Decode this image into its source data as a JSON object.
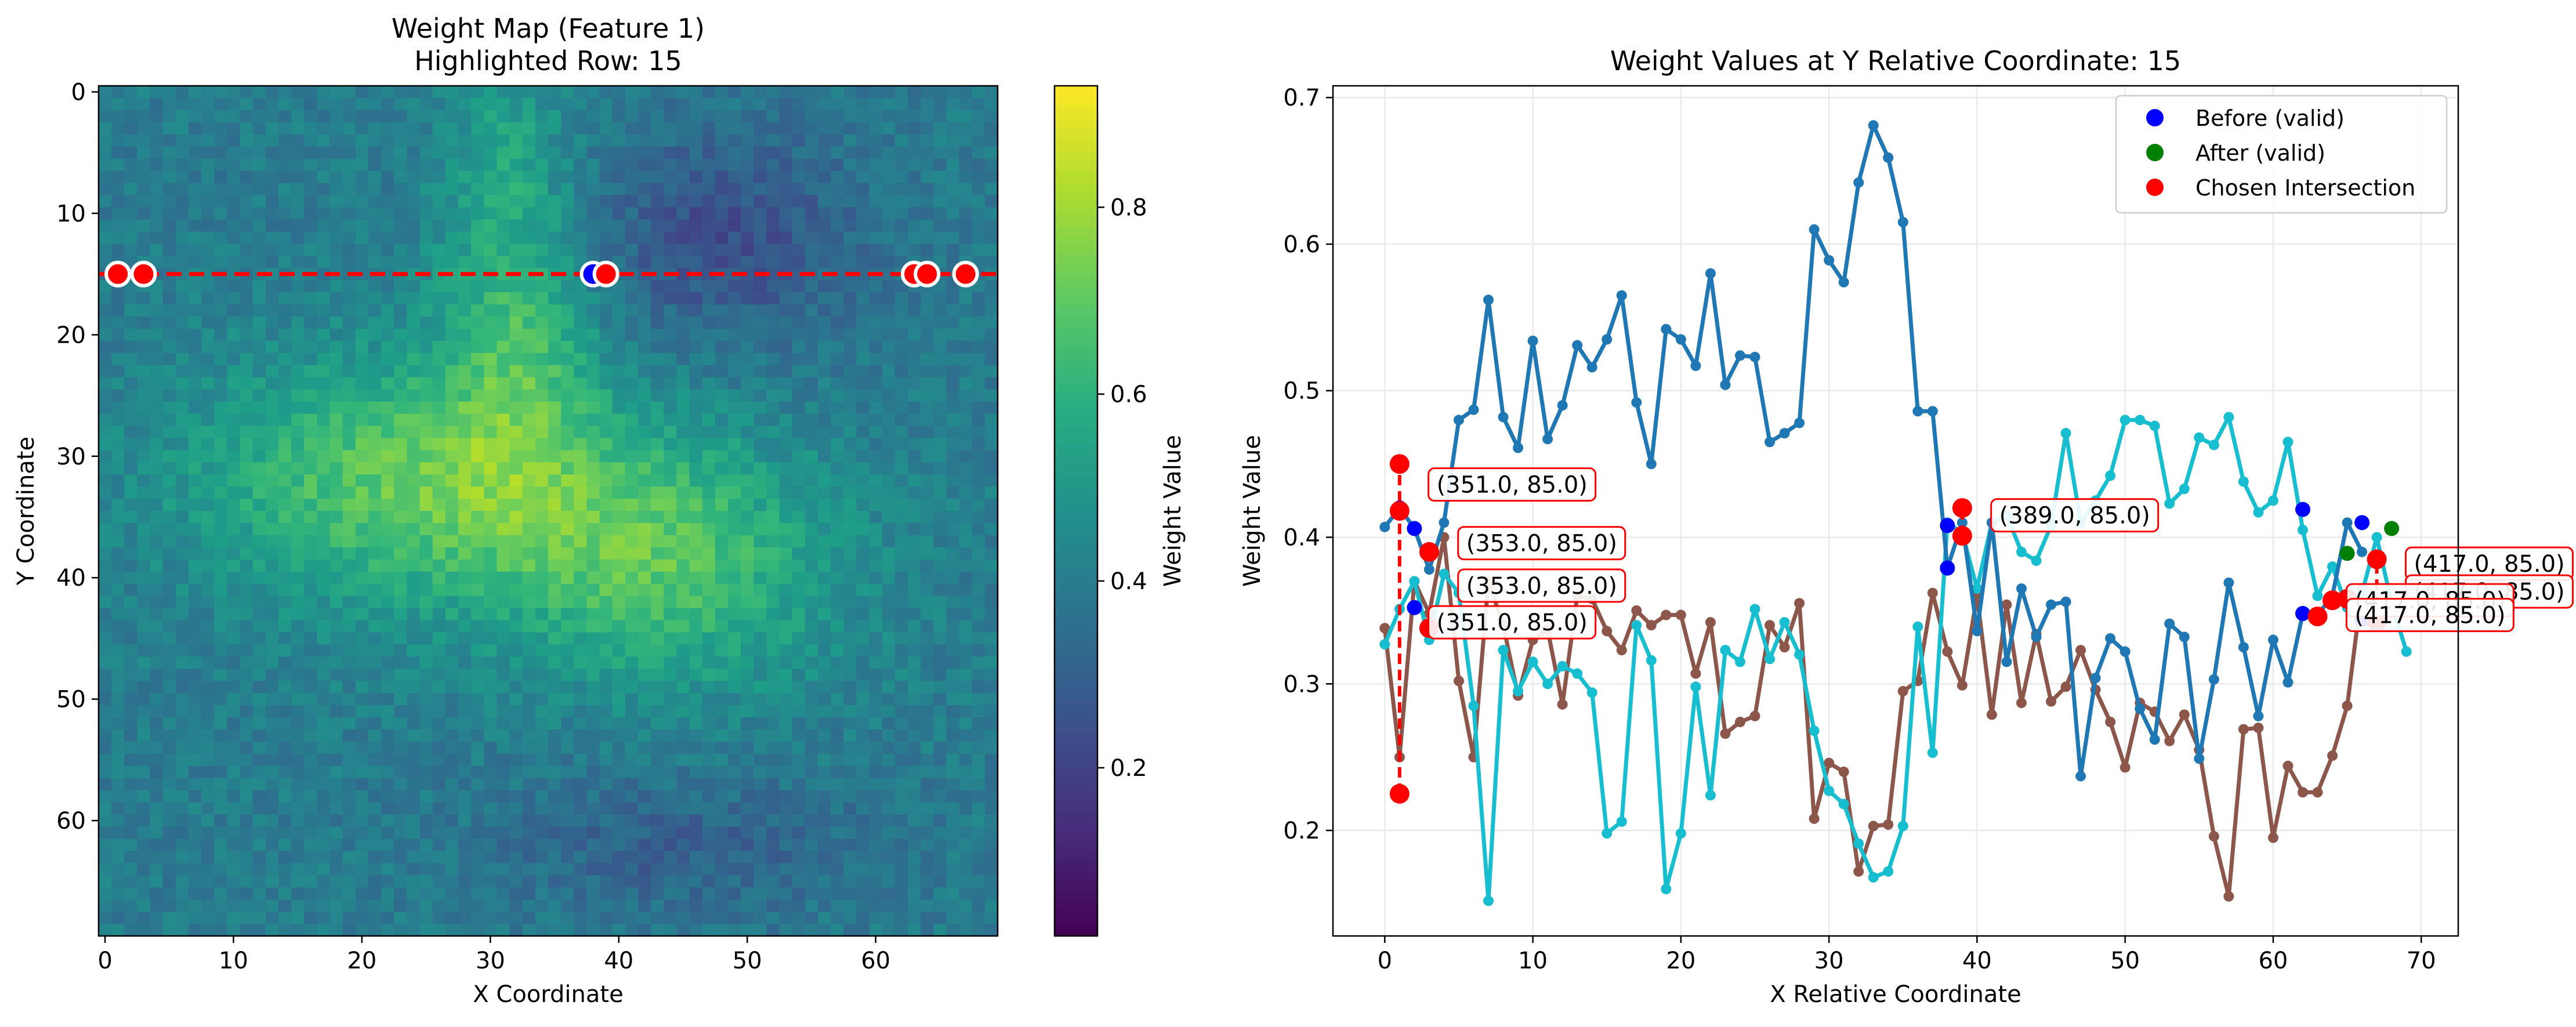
{
  "colors": {
    "series_blue": "#1f77b4",
    "series_cyan": "#17becf",
    "series_brown": "#8c564b",
    "before": "#0000ff",
    "after": "#008000",
    "chosen": "#ff0000",
    "grid": "#e6e6e6"
  },
  "chart_data": [
    {
      "type": "heatmap",
      "title": "Weight Map (Feature 1)",
      "subtitle": "Highlighted Row: 15",
      "xlabel": "X Coordinate",
      "ylabel": "Y Coordinate",
      "grid_size": [
        70,
        70
      ],
      "xlim": [
        -0.5,
        69.5
      ],
      "ylim": [
        69.5,
        -0.5
      ],
      "xticks": [
        0,
        10,
        20,
        30,
        40,
        50,
        60
      ],
      "yticks": [
        0,
        10,
        20,
        30,
        40,
        50,
        60
      ],
      "colorbar": {
        "label": "Weight Value",
        "range": [
          0.02,
          0.93
        ],
        "ticks": [
          0.2,
          0.4,
          0.6,
          0.8
        ],
        "colormap": "viridis"
      },
      "highlight_row": 15,
      "row_markers": [
        {
          "x": 1,
          "kind": "before"
        },
        {
          "x": 1,
          "kind": "chosen"
        },
        {
          "x": 3,
          "kind": "chosen"
        },
        {
          "x": 38,
          "kind": "before"
        },
        {
          "x": 39,
          "kind": "chosen"
        },
        {
          "x": 63,
          "kind": "before"
        },
        {
          "x": 63,
          "kind": "chosen"
        },
        {
          "x": 64,
          "kind": "chosen"
        },
        {
          "x": 67,
          "kind": "chosen"
        }
      ]
    },
    {
      "type": "line",
      "title": "Weight Values at Y Relative Coordinate: 15",
      "xlabel": "X Relative Coordinate",
      "ylabel": "Weight Value",
      "xlim": [
        -3.5,
        72.5
      ],
      "ylim": [
        0.128,
        0.708
      ],
      "xticks": [
        0,
        10,
        20,
        30,
        40,
        50,
        60,
        70
      ],
      "yticks": [
        0.2,
        0.3,
        0.4,
        0.5,
        0.6,
        0.7
      ],
      "ytick_labels": [
        "0.2",
        "0.3",
        "0.4",
        "0.5",
        "0.6",
        "0.7"
      ],
      "grid": true,
      "legend": {
        "position": "top-right",
        "entries": [
          "Before (valid)",
          "After (valid)",
          "Chosen Intersection"
        ]
      },
      "series": [
        {
          "name": "blue",
          "x_start": 0,
          "values": [
            0.407,
            0.42,
            0.406,
            0.378,
            0.41,
            0.48,
            0.487,
            0.562,
            0.482,
            0.461,
            0.534,
            0.467,
            0.49,
            0.531,
            0.516,
            0.535,
            0.565,
            0.492,
            0.45,
            0.542,
            0.535,
            0.517,
            0.58,
            0.504,
            0.524,
            0.523,
            0.465,
            0.471,
            0.478,
            0.61,
            0.589,
            0.574,
            0.642,
            0.681,
            0.659,
            0.615,
            0.486,
            0.486,
            0.379,
            0.41,
            0.336,
            0.41,
            0.315,
            0.365,
            0.332,
            0.354,
            0.356,
            0.237,
            0.304,
            0.331,
            0.322,
            0.283,
            0.262,
            0.341,
            0.332,
            0.249,
            0.303,
            0.369,
            0.325,
            0.278,
            0.33,
            0.301,
            0.348,
            0.347,
            0.36,
            0.41,
            0.39
          ]
        },
        {
          "name": "cyan",
          "x_start": 0,
          "values": [
            0.327,
            0.351,
            0.37,
            0.33,
            0.375,
            0.362,
            0.285,
            0.152,
            0.323,
            0.295,
            0.315,
            0.3,
            0.312,
            0.307,
            0.294,
            0.198,
            0.206,
            0.34,
            0.316,
            0.16,
            0.198,
            0.298,
            0.224,
            0.323,
            0.315,
            0.351,
            0.317,
            0.342,
            0.32,
            0.268,
            0.227,
            0.218,
            0.191,
            0.168,
            0.172,
            0.203,
            0.339,
            0.253,
            0.41,
            0.403,
            0.365,
            0.41,
            0.415,
            0.39,
            0.384,
            0.408,
            0.471,
            0.41,
            0.425,
            0.442,
            0.48,
            0.48,
            0.476,
            0.423,
            0.433,
            0.468,
            0.463,
            0.482,
            0.438,
            0.417,
            0.425,
            0.465,
            0.405,
            0.36,
            0.38,
            0.352,
            0.362,
            0.4,
            0.355,
            0.322
          ]
        },
        {
          "name": "brown",
          "x_start": 0,
          "values": [
            0.338,
            0.25,
            0.37,
            0.348,
            0.4,
            0.302,
            0.25,
            0.37,
            0.34,
            0.292,
            0.33,
            0.337,
            0.286,
            0.36,
            0.358,
            0.336,
            0.323,
            0.35,
            0.34,
            0.347,
            0.347,
            0.307,
            0.342,
            0.266,
            0.274,
            0.278,
            0.34,
            0.325,
            0.355,
            0.208,
            0.246,
            0.24,
            0.172,
            0.203,
            0.204,
            0.295,
            0.302,
            0.362,
            0.322,
            0.299,
            0.36,
            0.279,
            0.354,
            0.287,
            0.334,
            0.288,
            0.298,
            0.323,
            0.296,
            0.274,
            0.243,
            0.287,
            0.281,
            0.261,
            0.279,
            0.255,
            0.196,
            0.155,
            0.269,
            0.27,
            0.195,
            0.244,
            0.226,
            0.226,
            0.251,
            0.285,
            0.365,
            0.34
          ]
        }
      ],
      "before_points": [
        {
          "x": 1,
          "y": 0.42
        },
        {
          "x": 2,
          "y": 0.406
        },
        {
          "x": 2,
          "y": 0.352
        },
        {
          "x": 38,
          "y": 0.379
        },
        {
          "x": 38,
          "y": 0.408
        },
        {
          "x": 62,
          "y": 0.419
        },
        {
          "x": 62,
          "y": 0.348
        },
        {
          "x": 66,
          "y": 0.41
        },
        {
          "x": 66,
          "y": 0.344
        }
      ],
      "after_points": [
        {
          "x": 65,
          "y": 0.389
        },
        {
          "x": 68,
          "y": 0.406
        }
      ],
      "vertical_links": [
        {
          "x": 1,
          "y1": 0.225,
          "y2": 0.45
        },
        {
          "x": 39,
          "y1": 0.401,
          "y2": 0.42
        },
        {
          "x": 67,
          "y1": 0.342,
          "y2": 0.385
        }
      ],
      "chosen_points": [
        {
          "x": 1,
          "y": 0.45
        },
        {
          "x": 1,
          "y": 0.418
        },
        {
          "x": 1,
          "y": 0.225
        },
        {
          "x": 3,
          "y": 0.39
        },
        {
          "x": 3,
          "y": 0.338
        },
        {
          "x": 39,
          "y": 0.42
        },
        {
          "x": 39,
          "y": 0.401
        },
        {
          "x": 63,
          "y": 0.346
        },
        {
          "x": 64,
          "y": 0.357
        },
        {
          "x": 65,
          "y": 0.358
        },
        {
          "x": 67,
          "y": 0.385
        },
        {
          "x": 67,
          "y": 0.342
        }
      ],
      "annotations": [
        {
          "text": "(351.0, 85.0)",
          "x": 3.5,
          "y": 0.436
        },
        {
          "text": "(353.0, 85.0)",
          "x": 5.5,
          "y": 0.396
        },
        {
          "text": "(353.0, 85.0)",
          "x": 5.5,
          "y": 0.367
        },
        {
          "text": "(351.0, 85.0)",
          "x": 3.5,
          "y": 0.342
        },
        {
          "text": "(389.0, 85.0)",
          "x": 41.5,
          "y": 0.415
        },
        {
          "text": "(417.0, 85.0)",
          "x": 69.5,
          "y": 0.382
        },
        {
          "text": "(417.0, 85.0)",
          "x": 69.5,
          "y": 0.363
        },
        {
          "text": "(417.0, 85.0)",
          "x": 65.5,
          "y": 0.357
        },
        {
          "text": "(417.0, 85.0)",
          "x": 65.5,
          "y": 0.347
        }
      ]
    }
  ]
}
